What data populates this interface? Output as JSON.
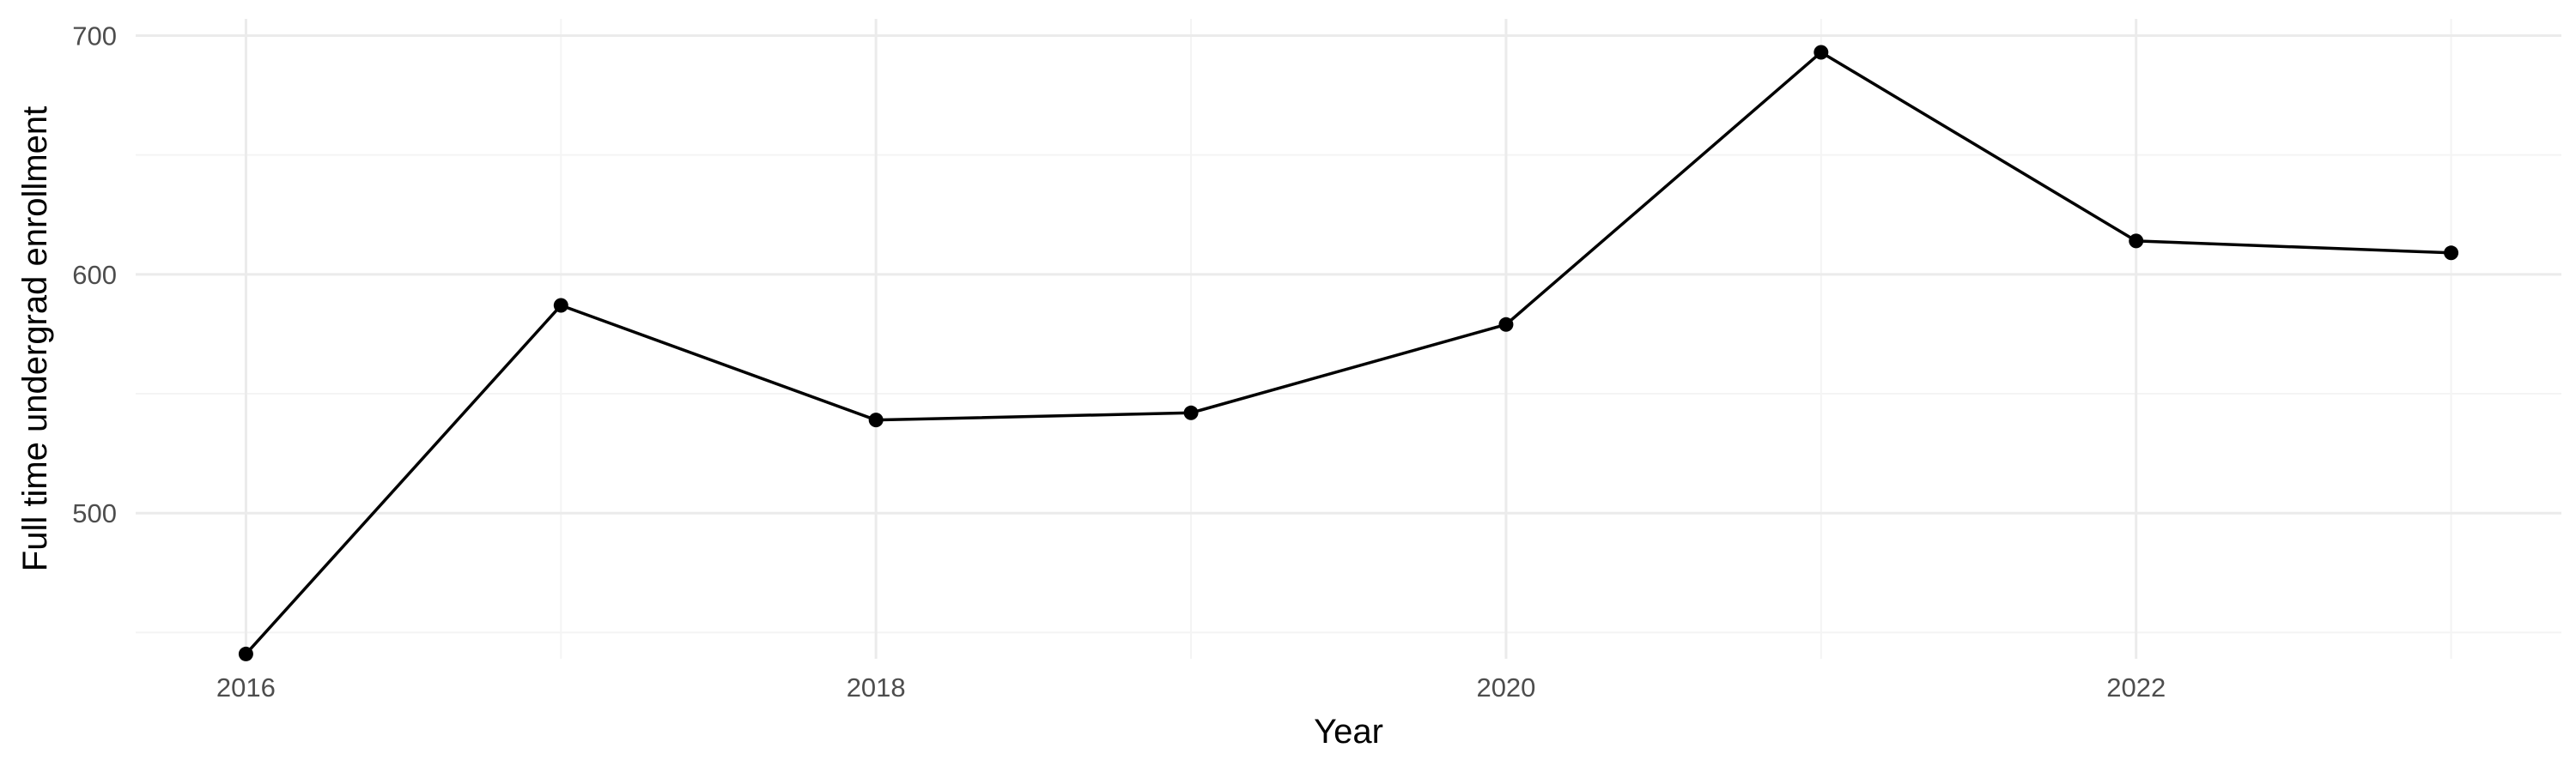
{
  "colors": {
    "background": "#ffffff",
    "grid_major": "#ebebeb",
    "grid_minor": "#f4f4f4",
    "line": "#000000",
    "point": "#000000",
    "tick_text": "#4d4d4d",
    "axis_title_text": "#000000"
  },
  "chart_data": {
    "type": "line",
    "title": "",
    "xlabel": "Year",
    "ylabel": "Full time undergrad enrollment",
    "xlim": [
      2015.65,
      2023.35
    ],
    "ylim": [
      439,
      707
    ],
    "x_ticks": [
      2016,
      2018,
      2020,
      2022
    ],
    "x_tick_labels": [
      "2016",
      "2018",
      "2020",
      "2022"
    ],
    "y_ticks": [
      500,
      600,
      700
    ],
    "y_tick_labels": [
      "500",
      "600",
      "700"
    ],
    "grid": true,
    "legend": "none",
    "series": [
      {
        "x": [
          2016,
          2017,
          2018,
          2019,
          2020,
          2021,
          2022,
          2023
        ],
        "y": [
          441,
          587,
          539,
          542,
          579,
          693,
          614,
          609
        ],
        "markers": true
      }
    ]
  }
}
